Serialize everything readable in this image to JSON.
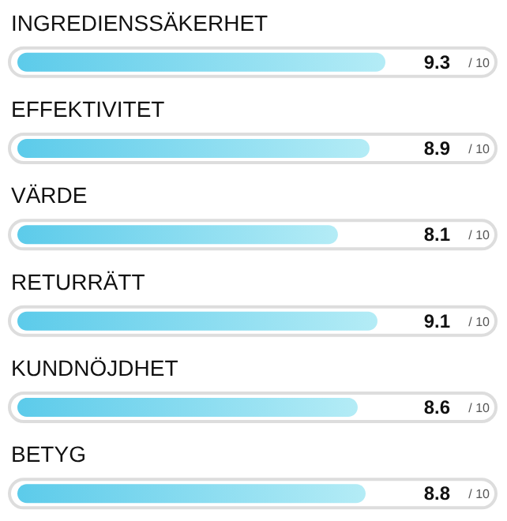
{
  "chart_data": {
    "type": "bar",
    "orientation": "horizontal",
    "categories": [
      "INGREDIENSSÄKERHET",
      "EFFEKTIVITET",
      "VÄRDE",
      "RETURRÄTT",
      "KUNDNÖJDHET",
      "BETYG"
    ],
    "values": [
      9.3,
      8.9,
      8.1,
      9.1,
      8.6,
      8.8
    ],
    "data_labels": true,
    "annotations": [
      "/ 10",
      "/ 10",
      "/ 10",
      "/ 10",
      "/ 10",
      "/ 10"
    ],
    "color": "#5ccbea",
    "tick_labels": false
  }
}
